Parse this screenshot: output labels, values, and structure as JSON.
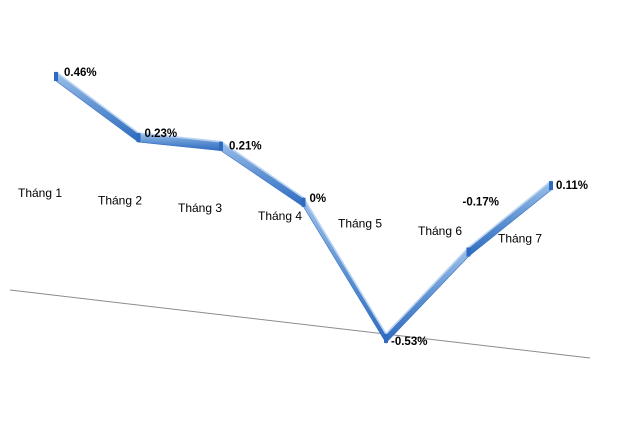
{
  "chart_data": {
    "type": "line",
    "title": "",
    "xlabel": "",
    "ylabel": "",
    "categories": [
      "Tháng 1",
      "Tháng 2",
      "Tháng 3",
      "Tháng 4",
      "Tháng 5",
      "Tháng 6",
      "Tháng 7"
    ],
    "series": [
      {
        "name": "",
        "values": [
          0.46,
          0.23,
          0.21,
          0,
          -0.53,
          -0.17,
          0.11
        ],
        "labels": [
          "0.46%",
          "0.23%",
          "0.21%",
          "0%",
          "-0.53%",
          "-0.17%",
          "0.11%"
        ]
      }
    ],
    "ylim": [
      -0.6,
      0.5
    ],
    "grid": false,
    "legend": "none",
    "style": "3d-ribbon",
    "colors": {
      "ribbon_top": "#8DB4E2",
      "ribbon_face": "#4F81BD",
      "ribbon_dark": "#2E6BC0",
      "axis": "#8C8C8C"
    }
  }
}
